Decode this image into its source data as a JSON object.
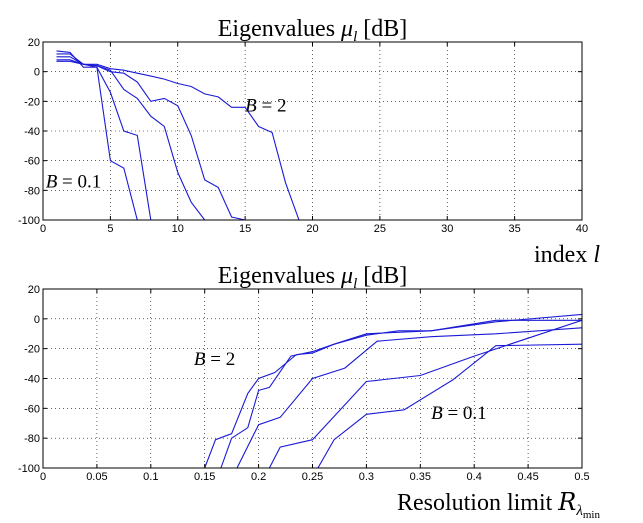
{
  "chart_data": [
    {
      "type": "line",
      "title": "Eigenvalues μ_l [dB]",
      "title_text": "Eigenvalues ",
      "title_sym": "μ",
      "title_sub": "l",
      "title_unit": " [dB]",
      "xlabel_text": "index ",
      "xlabel_sym": "l",
      "xlim": [
        0,
        40
      ],
      "ylim": [
        -100,
        20
      ],
      "xticks": [
        0,
        5,
        10,
        15,
        20,
        25,
        30,
        35,
        40
      ],
      "yticks": [
        -100,
        -80,
        -60,
        -40,
        -20,
        0,
        20
      ],
      "grid": true,
      "annotations": [
        {
          "text": "B = 2",
          "x": 15,
          "y": -27
        },
        {
          "text": "B = 0.1",
          "x": 0.2,
          "y": -78
        }
      ],
      "series": [
        {
          "x": [
            1,
            2,
            3,
            4,
            5,
            6,
            7
          ],
          "values": [
            14,
            13,
            3,
            3,
            -60,
            -65,
            -100
          ]
        },
        {
          "x": [
            1,
            2,
            3,
            4,
            5,
            6,
            7,
            8,
            9
          ],
          "values": [
            12,
            12,
            5,
            3,
            -14,
            -40,
            -43,
            -100,
            -100
          ]
        },
        {
          "x": [
            1,
            2,
            3,
            4,
            5,
            6,
            7,
            8,
            9,
            10,
            11,
            12
          ],
          "values": [
            10,
            10,
            5,
            4,
            1,
            -12,
            -18,
            -30,
            -37,
            -68,
            -88,
            -100
          ]
        },
        {
          "x": [
            1,
            2,
            3,
            4,
            5,
            6,
            7,
            8,
            9,
            10,
            11,
            12,
            13,
            14,
            15
          ],
          "values": [
            8,
            8,
            5,
            4,
            0,
            -1,
            -7,
            -20,
            -18,
            -23,
            -43,
            -73,
            -78,
            -98,
            -100
          ]
        },
        {
          "x": [
            1,
            2,
            3,
            4,
            5,
            6,
            7,
            8,
            9,
            10,
            11,
            12,
            13,
            14,
            15,
            16,
            17,
            18,
            19
          ],
          "values": [
            7,
            7,
            5,
            5,
            2,
            1,
            -1,
            -3,
            -5,
            -8,
            -10,
            -15,
            -17,
            -24,
            -24,
            -37,
            -41,
            -75,
            -100
          ]
        }
      ]
    },
    {
      "type": "line",
      "title": "Eigenvalues μ_l [dB]",
      "title_text": "Eigenvalues ",
      "title_sym": "μ",
      "title_sub": "l",
      "title_unit": " [dB]",
      "xlabel_text": "Resolution limit ",
      "xlabel_sym": "R",
      "xlabel_sub": "λ",
      "xlabel_subsub": "min",
      "xlim": [
        0,
        0.5
      ],
      "ylim": [
        -100,
        20
      ],
      "xticks": [
        0,
        0.05,
        0.1,
        0.15,
        0.2,
        0.25,
        0.3,
        0.35,
        0.4,
        0.45,
        0.5
      ],
      "yticks": [
        -100,
        -80,
        -60,
        -40,
        -20,
        0,
        20
      ],
      "grid": true,
      "annotations": [
        {
          "text": "B = 2",
          "x": 0.14,
          "y": -31
        },
        {
          "text": "B = 0.1",
          "x": 0.36,
          "y": -67
        }
      ],
      "series": [
        {
          "x": [
            0.15,
            0.16,
            0.175,
            0.19,
            0.2,
            0.215,
            0.235,
            0.25,
            0.27,
            0.3,
            0.36,
            0.42,
            0.5
          ],
          "values": [
            -100,
            -81,
            -77,
            -50,
            -40,
            -36,
            -24,
            -23,
            -17,
            -10,
            -8,
            -2,
            3
          ]
        },
        {
          "x": [
            0.165,
            0.175,
            0.19,
            0.2,
            0.21,
            0.23,
            0.25,
            0.27,
            0.3,
            0.33,
            0.36,
            0.42,
            0.5
          ],
          "values": [
            -100,
            -80,
            -73,
            -48,
            -46,
            -25,
            -22,
            -17,
            -11,
            -8,
            -8,
            -1,
            -1
          ]
        },
        {
          "x": [
            0.18,
            0.2,
            0.22,
            0.25,
            0.28,
            0.31,
            0.36,
            0.42,
            0.5
          ],
          "values": [
            -100,
            -71,
            -66,
            -40,
            -33,
            -15,
            -12,
            -10,
            -6
          ]
        },
        {
          "x": [
            0.21,
            0.22,
            0.25,
            0.3,
            0.35,
            0.4,
            0.45,
            0.5
          ],
          "values": [
            -100,
            -86,
            -81,
            -42,
            -38,
            -25,
            -13,
            -1
          ]
        },
        {
          "x": [
            0.255,
            0.27,
            0.3,
            0.335,
            0.38,
            0.42,
            0.5
          ],
          "values": [
            -100,
            -81,
            -64,
            -61,
            -41,
            -18,
            -17
          ]
        }
      ]
    }
  ]
}
